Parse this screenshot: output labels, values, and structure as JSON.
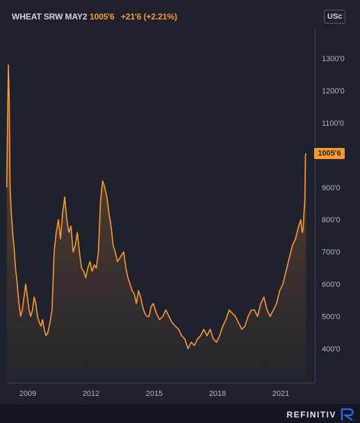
{
  "header": {
    "symbol": "WHEAT SRW MAY2",
    "last": "1005'6",
    "change": "+21'6 (+2.21%)"
  },
  "unit_badge": "USc",
  "last_price_label": "1005'6",
  "brand": {
    "name": "REFINITIV",
    "icon": "refinitiv-logo-icon"
  },
  "colors": {
    "background": "#1e222d",
    "line": "#ff9a33",
    "axis_text": "#b2b5be"
  },
  "chart_data": {
    "type": "area",
    "title": "",
    "xlabel": "",
    "ylabel": "",
    "grid": false,
    "xlim": [
      2008.0,
      2022.3
    ],
    "ylim": [
      330,
      1360
    ],
    "yticks": [
      400,
      500,
      600,
      700,
      800,
      900,
      1000,
      1100,
      1200,
      1300
    ],
    "ytick_labels": [
      "400'0",
      "500'0",
      "600'0",
      "700'0",
      "800'0",
      "900'0",
      "1000'0",
      "1100'0",
      "1200'0",
      "1300'0"
    ],
    "xticks": [
      2009,
      2012,
      2015,
      2018,
      2021
    ],
    "xtick_labels": [
      "2009",
      "2012",
      "2015",
      "2018",
      "2021"
    ],
    "series": [
      {
        "x": [
          2008.0,
          2008.04,
          2008.08,
          2008.12,
          2008.16,
          2008.22,
          2008.28,
          2008.34,
          2008.42,
          2008.5,
          2008.58,
          2008.66,
          2008.74,
          2008.82,
          2008.9,
          2008.98,
          2009.06,
          2009.14,
          2009.22,
          2009.3,
          2009.38,
          2009.46,
          2009.55,
          2009.63,
          2009.7,
          2009.78,
          2009.86,
          2009.95,
          2010.05,
          2010.15,
          2010.25,
          2010.35,
          2010.45,
          2010.55,
          2010.65,
          2010.75,
          2010.85,
          2010.95,
          2011.05,
          2011.15,
          2011.25,
          2011.35,
          2011.45,
          2011.55,
          2011.65,
          2011.75,
          2011.85,
          2011.95,
          2012.05,
          2012.15,
          2012.25,
          2012.35,
          2012.45,
          2012.55,
          2012.65,
          2012.75,
          2012.85,
          2012.95,
          2013.05,
          2013.15,
          2013.25,
          2013.35,
          2013.45,
          2013.55,
          2013.65,
          2013.75,
          2013.85,
          2013.95,
          2014.05,
          2014.15,
          2014.25,
          2014.35,
          2014.45,
          2014.55,
          2014.65,
          2014.75,
          2014.85,
          2014.95,
          2015.1,
          2015.25,
          2015.4,
          2015.55,
          2015.7,
          2015.85,
          2016.0,
          2016.15,
          2016.3,
          2016.45,
          2016.6,
          2016.75,
          2016.9,
          2017.05,
          2017.2,
          2017.35,
          2017.5,
          2017.65,
          2017.8,
          2017.95,
          2018.1,
          2018.25,
          2018.4,
          2018.55,
          2018.7,
          2018.85,
          2019.0,
          2019.15,
          2019.3,
          2019.45,
          2019.6,
          2019.75,
          2019.9,
          2020.05,
          2020.2,
          2020.35,
          2020.5,
          2020.65,
          2020.8,
          2020.95,
          2021.1,
          2021.25,
          2021.4,
          2021.55,
          2021.7,
          2021.85,
          2021.95,
          2022.02,
          2022.06,
          2022.1,
          2022.14,
          2022.17,
          2022.2
        ],
        "y": [
          900,
          1100,
          1280,
          1170,
          900,
          820,
          760,
          720,
          650,
          600,
          540,
          500,
          520,
          560,
          600,
          560,
          520,
          500,
          520,
          560,
          540,
          500,
          480,
          470,
          490,
          460,
          440,
          450,
          480,
          520,
          700,
          760,
          800,
          740,
          820,
          870,
          800,
          760,
          780,
          700,
          720,
          760,
          700,
          650,
          640,
          620,
          650,
          670,
          640,
          660,
          650,
          700,
          860,
          920,
          900,
          870,
          820,
          780,
          720,
          700,
          670,
          680,
          690,
          700,
          650,
          620,
          600,
          580,
          570,
          540,
          580,
          560,
          530,
          510,
          500,
          500,
          530,
          540,
          510,
          490,
          500,
          520,
          500,
          480,
          470,
          460,
          440,
          430,
          400,
          420,
          410,
          430,
          440,
          460,
          440,
          460,
          430,
          420,
          440,
          470,
          490,
          520,
          510,
          500,
          480,
          460,
          470,
          500,
          520,
          520,
          500,
          540,
          560,
          520,
          500,
          520,
          540,
          580,
          600,
          640,
          680,
          720,
          740,
          780,
          800,
          760,
          770,
          820,
          860,
          1000,
          1005.75
        ]
      }
    ]
  }
}
